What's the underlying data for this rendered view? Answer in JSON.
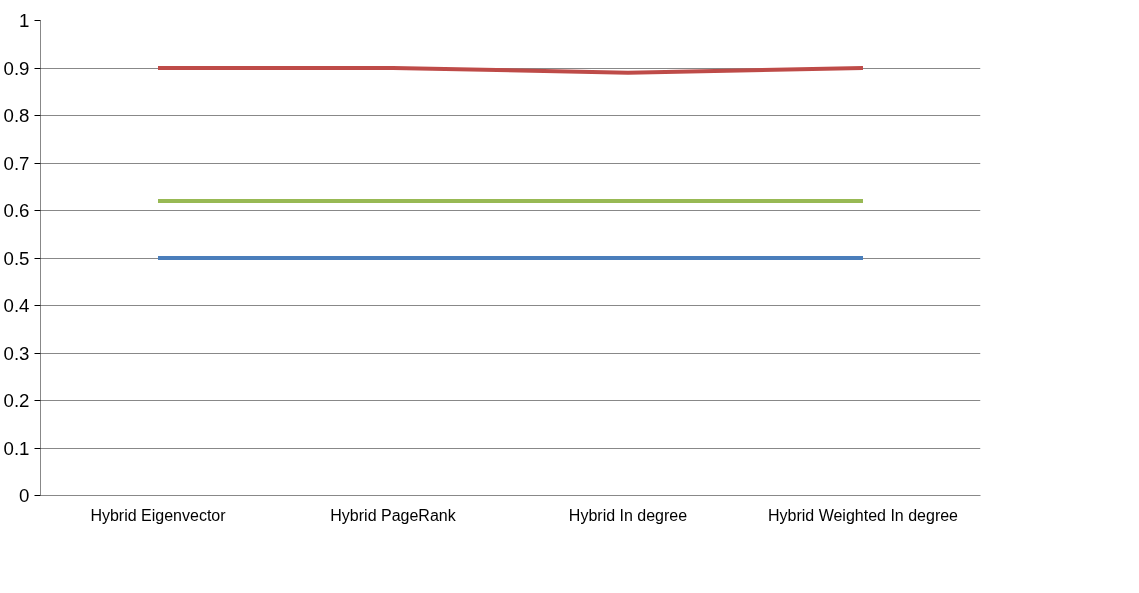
{
  "chart_data": {
    "type": "line",
    "categories": [
      "Hybrid Eigenvector",
      "Hybrid PageRank",
      "Hybrid In degree",
      "Hybrid Weighted In degree"
    ],
    "series": [
      {
        "color": "#4a7ebb",
        "values": [
          0.5,
          0.5,
          0.5,
          0.5
        ]
      },
      {
        "color": "#be4b48",
        "values": [
          0.9,
          0.9,
          0.89,
          0.9
        ]
      },
      {
        "color": "#98b954",
        "values": [
          0.62,
          0.62,
          0.62,
          0.62
        ]
      }
    ],
    "ylim": [
      0,
      1
    ],
    "yticks": [
      0,
      0.1,
      0.2,
      0.3,
      0.4,
      0.5,
      0.6,
      0.7,
      0.8,
      0.9,
      1
    ],
    "grid": "y",
    "marker": "none",
    "line_style": "solid"
  }
}
